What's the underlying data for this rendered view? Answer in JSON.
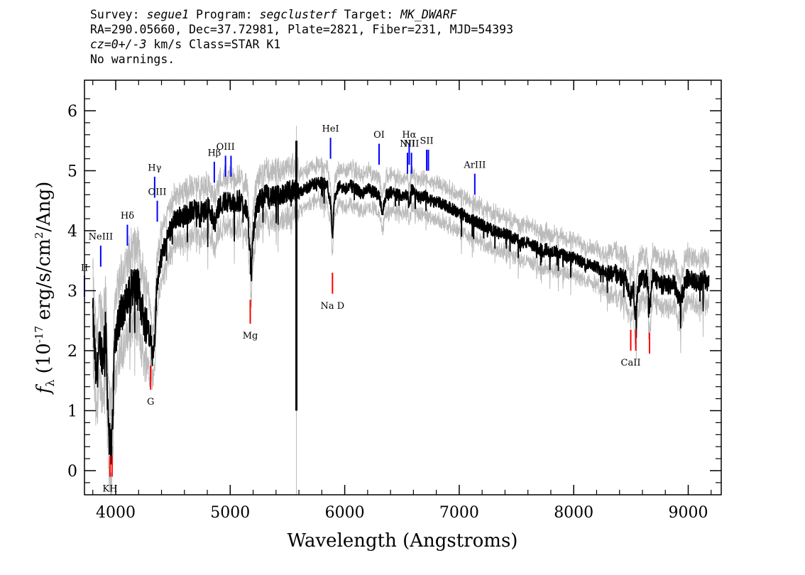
{
  "header": {
    "line1": {
      "survey_label": "Survey: ",
      "survey": "segue1",
      "program_label": " Program: ",
      "program": "segclusterf",
      "target_label": " Target: ",
      "target": "MK_DWARF"
    },
    "line2": "RA=290.05660, Dec=37.72981, Plate=2821, Fiber=231, MJD=54393",
    "line3": {
      "cz": "cz=0+/-3",
      "rest": " km/s Class=STAR K1"
    },
    "line4": "No warnings."
  },
  "colors": {
    "flux": "#000000",
    "error": "#bbbbbb",
    "emission": "#0000ff",
    "absorption": "#ff0000",
    "wide_absorption": "#cc0000"
  },
  "chart_data": {
    "type": "line",
    "xlabel": "Wavelength (Angstroms)",
    "ylabel": "f_λ (10^-17 erg/s/cm^2/Ang)",
    "xlim": [
      3700,
      9300
    ],
    "ylim": [
      -0.4,
      6.5
    ],
    "xticks": [
      4000,
      5000,
      6000,
      7000,
      8000,
      9000
    ],
    "yticks": [
      0,
      1,
      2,
      3,
      4,
      5,
      6
    ],
    "grid": false,
    "series": [
      {
        "x": [
          3800,
          3830,
          3860,
          3890,
          3910,
          3935,
          3950,
          3968,
          3990,
          4020,
          4060,
          4100,
          4150,
          4200,
          4250,
          4300,
          4320,
          4340,
          4360,
          4380,
          4420,
          4470,
          4520,
          4580,
          4640,
          4700,
          4760,
          4820,
          4860,
          4900,
          4960,
          5020,
          5080,
          5140,
          5170,
          5184,
          5200,
          5230,
          5270,
          5320,
          5380,
          5440,
          5500,
          5560,
          5600,
          5650,
          5700,
          5750,
          5800,
          5850,
          5880,
          5893,
          5910,
          5950,
          6000,
          6050,
          6100,
          6150,
          6200,
          6250,
          6300,
          6330,
          6360,
          6400,
          6450,
          6500,
          6550,
          6563,
          6580,
          6620,
          6660,
          6700,
          6750,
          6800,
          6850,
          6900,
          6950,
          7000,
          7050,
          7100,
          7150,
          7200,
          7250,
          7300,
          7350,
          7400,
          7450,
          7500,
          7550,
          7600,
          7650,
          7700,
          7750,
          7800,
          7850,
          7900,
          7950,
          8000,
          8050,
          8100,
          8150,
          8200,
          8250,
          8300,
          8350,
          8400,
          8450,
          8498,
          8520,
          8542,
          8560,
          8600,
          8640,
          8662,
          8690,
          8730,
          8780,
          8830,
          8880,
          8930,
          8980,
          9030,
          9080,
          9130,
          9180
        ],
        "y": [
          2.6,
          1.5,
          2.1,
          1.9,
          2.5,
          0.9,
          0.4,
          0.5,
          2.1,
          2.5,
          2.7,
          2.8,
          3.1,
          3.0,
          2.5,
          2.4,
          1.9,
          2.2,
          3.1,
          3.4,
          3.7,
          4.0,
          4.2,
          4.25,
          4.3,
          4.35,
          4.3,
          4.4,
          4.1,
          4.4,
          4.5,
          4.45,
          4.5,
          4.4,
          3.8,
          3.2,
          3.9,
          4.4,
          4.55,
          4.6,
          4.55,
          4.6,
          4.65,
          4.7,
          4.6,
          4.7,
          4.75,
          4.8,
          4.8,
          4.75,
          4.4,
          3.9,
          4.5,
          4.75,
          4.7,
          4.75,
          4.7,
          4.6,
          4.7,
          4.65,
          4.6,
          4.3,
          4.6,
          4.65,
          4.6,
          4.6,
          4.6,
          4.35,
          4.7,
          4.6,
          4.55,
          4.6,
          4.5,
          4.5,
          4.45,
          4.4,
          4.35,
          4.3,
          4.25,
          4.2,
          4.15,
          4.1,
          4.05,
          4.0,
          3.95,
          3.95,
          3.9,
          3.85,
          3.8,
          3.8,
          3.75,
          3.7,
          3.7,
          3.65,
          3.65,
          3.6,
          3.55,
          3.55,
          3.5,
          3.45,
          3.45,
          3.4,
          3.35,
          3.3,
          3.3,
          3.25,
          3.2,
          2.9,
          3.1,
          2.5,
          3.1,
          3.2,
          3.2,
          2.7,
          3.2,
          3.2,
          3.1,
          3.1,
          3.1,
          2.8,
          3.2,
          3.2,
          3.1,
          3.2,
          3.1
        ]
      }
    ],
    "spike": {
      "x": 5578,
      "y_low": 1.0,
      "y_high": 5.5
    },
    "lines": [
      {
        "label": "NeIII",
        "x": 3869,
        "y0": 3.4,
        "y1": 3.75,
        "color": "#0000ff",
        "ly": 3.85
      },
      {
        "label": "II",
        "x": 3727,
        "y0": 2.9,
        "y1": 3.25,
        "color": "#0000ff",
        "ly": 3.33
      },
      {
        "label": "Hδ",
        "x": 4102,
        "y0": 3.75,
        "y1": 4.1,
        "color": "#0000ff",
        "ly": 4.2
      },
      {
        "label": "Hγ",
        "x": 4340,
        "y0": 4.55,
        "y1": 4.9,
        "color": "#0000ff",
        "ly": 5.0
      },
      {
        "label": "OIII",
        "x": 4363,
        "y0": 4.15,
        "y1": 4.5,
        "color": "#0000ff",
        "ly": 4.6
      },
      {
        "label": "Hβ",
        "x": 4861,
        "y0": 4.8,
        "y1": 5.15,
        "color": "#0000ff",
        "ly": 5.25
      },
      {
        "label": "OIII",
        "x": 4959,
        "y0": 4.9,
        "y1": 5.25,
        "color": "#0000ff",
        "ly": 5.35
      },
      {
        "label": "",
        "x": 5007,
        "y0": 4.9,
        "y1": 5.25,
        "color": "#0000ff",
        "ly": 5.35
      },
      {
        "label": "HeI",
        "x": 5876,
        "y0": 5.2,
        "y1": 5.55,
        "color": "#0000ff",
        "ly": 5.65
      },
      {
        "label": "OI",
        "x": 6300,
        "y0": 5.1,
        "y1": 5.45,
        "color": "#0000ff",
        "ly": 5.55
      },
      {
        "label": "NII",
        "x": 6548,
        "y0": 4.95,
        "y1": 5.3,
        "color": "#0000ff",
        "ly": 5.4
      },
      {
        "label": "Hα",
        "x": 6563,
        "y0": 5.1,
        "y1": 5.45,
        "color": "#0000ff",
        "ly": 5.55
      },
      {
        "label": "NII",
        "x": 6583,
        "y0": 4.95,
        "y1": 5.3,
        "color": "#0000ff",
        "ly": 5.4
      },
      {
        "label": "SII",
        "x": 6716,
        "y0": 5.0,
        "y1": 5.35,
        "color": "#0000ff",
        "ly": 5.45
      },
      {
        "label": "",
        "x": 6731,
        "y0": 5.0,
        "y1": 5.35,
        "color": "#0000ff",
        "ly": 5.45
      },
      {
        "label": "ArIII",
        "x": 7136,
        "y0": 4.6,
        "y1": 4.95,
        "color": "#0000ff",
        "ly": 5.05
      },
      {
        "label": "KH",
        "x": 3950,
        "y0": -0.1,
        "y1": 0.25,
        "color": "#ff0000",
        "ly": -0.35
      },
      {
        "label": "",
        "x": 3968,
        "y0": -0.1,
        "y1": 0.25,
        "color": "#ff0000",
        "ly": -0.35
      },
      {
        "label": "G",
        "x": 4305,
        "y0": 1.35,
        "y1": 1.75,
        "color": "#ff0000",
        "ly": 1.1
      },
      {
        "label": "Mg",
        "x": 5175,
        "y0": 2.45,
        "y1": 2.85,
        "color": "#ff0000",
        "ly": 2.2
      },
      {
        "label": "Na D",
        "x": 5893,
        "y0": 2.95,
        "y1": 3.3,
        "color": "#ff0000",
        "ly": 2.7
      },
      {
        "label": "CaII",
        "x": 8498,
        "y0": 2.0,
        "y1": 2.35,
        "color": "#ff0000",
        "ly": 1.75
      },
      {
        "label": "",
        "x": 8542,
        "y0": 2.0,
        "y1": 2.35,
        "color": "#ff0000",
        "ly": 1.75
      },
      {
        "label": "",
        "x": 8662,
        "y0": 1.95,
        "y1": 2.3,
        "color": "#ff0000",
        "ly": 1.75
      }
    ]
  }
}
